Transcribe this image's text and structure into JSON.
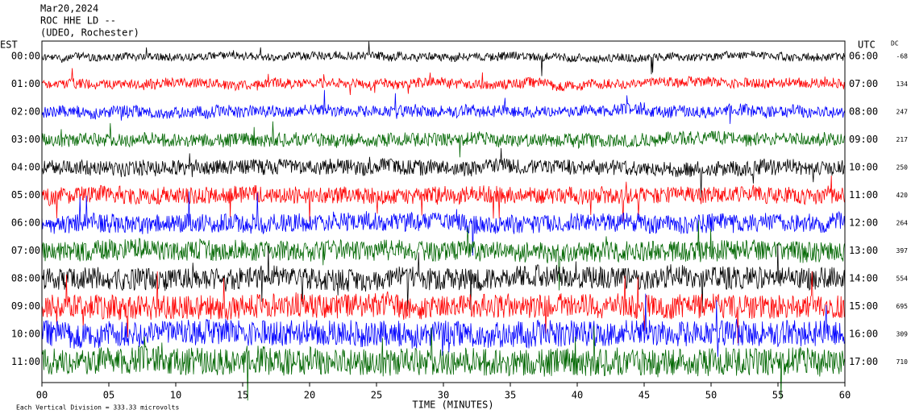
{
  "chart_data": {
    "type": "helicorder",
    "title_lines": [
      "Mar20,2024",
      "ROC HHE LD --",
      "(UDEO, Rochester)"
    ],
    "left_header": "EST",
    "right_header": "UTC",
    "dc_header": "DC",
    "categories": [
      "00:00",
      "01:00",
      "02:00",
      "03:00",
      "04:00",
      "05:00",
      "06:00",
      "07:00",
      "08:00",
      "09:00",
      "10:00",
      "11:00"
    ],
    "utc_labels": [
      "06:00",
      "07:00",
      "08:00",
      "09:00",
      "10:00",
      "11:00",
      "12:00",
      "13:00",
      "14:00",
      "15:00",
      "16:00",
      "17:00"
    ],
    "dc_values": [
      -68,
      134,
      247,
      217,
      250,
      420,
      264,
      397,
      554,
      695,
      309,
      710
    ],
    "colors": [
      "#000000",
      "#ff0000",
      "#0000ff",
      "#006600"
    ],
    "xlabel": "TIME (MINUTES)",
    "xlim": [
      0,
      60
    ],
    "xticks": [
      {
        "value": 0,
        "label": "00"
      },
      {
        "value": 5,
        "label": "05"
      },
      10,
      15,
      20,
      25,
      30,
      35,
      40,
      45,
      50,
      55,
      60
    ],
    "footnote": "Each Vertical Division = 333.33 microvolts"
  }
}
